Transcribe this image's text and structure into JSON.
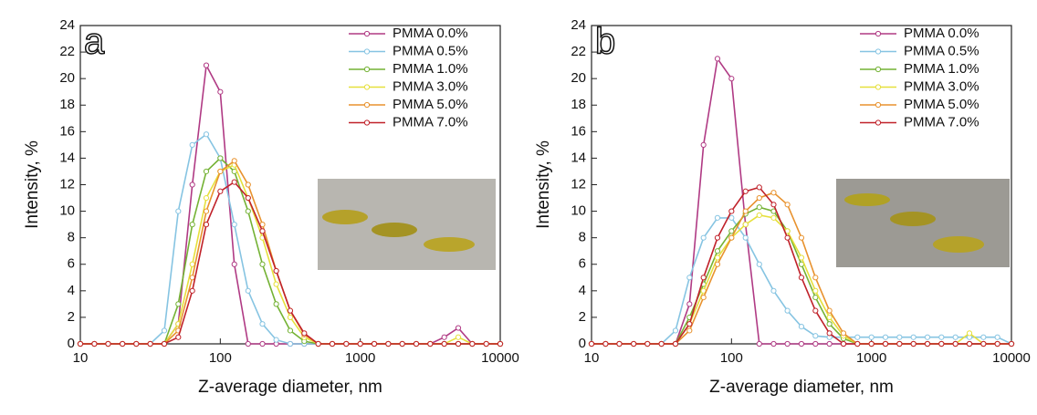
{
  "chart_data": [
    {
      "type": "line",
      "panel_label": "a",
      "x_label": "Z-average diameter, nm",
      "y_label": "Intensity, %",
      "log_x": true,
      "xlim": [
        10,
        10000
      ],
      "xticks": [
        10,
        100,
        1000,
        10000
      ],
      "ylim": [
        0,
        24
      ],
      "yticks": [
        0,
        2,
        4,
        6,
        8,
        10,
        12,
        14,
        16,
        18,
        20,
        22,
        24
      ],
      "legend": "upper right",
      "x": [
        10,
        12.6,
        15.8,
        20,
        25.1,
        31.6,
        39.8,
        50.1,
        63.1,
        79.4,
        100,
        126,
        158,
        200,
        251,
        316,
        398,
        501,
        631,
        794,
        1000,
        1259,
        1585,
        1995,
        2512,
        3162,
        3981,
        5012,
        6310,
        7943,
        10000
      ],
      "series": [
        {
          "name": "PMMA 0.0%",
          "color": "#b03a84",
          "values": [
            0,
            0,
            0,
            0,
            0,
            0,
            0,
            1.5,
            12,
            21,
            19,
            6,
            0,
            0,
            0,
            0,
            0,
            0,
            0,
            0,
            0,
            0,
            0,
            0,
            0,
            0,
            0.5,
            1.2,
            0,
            0,
            0
          ]
        },
        {
          "name": "PMMA 0.5%",
          "color": "#86c4e2",
          "values": [
            0,
            0,
            0,
            0,
            0,
            0,
            1,
            10,
            15,
            15.8,
            14,
            9,
            4,
            1.5,
            0.3,
            0,
            0,
            0,
            0,
            0,
            0,
            0,
            0,
            0,
            0,
            0,
            0,
            0,
            0,
            0,
            0
          ]
        },
        {
          "name": "PMMA 1.0%",
          "color": "#74b234",
          "values": [
            0,
            0,
            0,
            0,
            0,
            0,
            0,
            3,
            9,
            13,
            14,
            13,
            10,
            6,
            3,
            1,
            0.2,
            0,
            0,
            0,
            0,
            0,
            0,
            0,
            0,
            0,
            0,
            0,
            0,
            0,
            0
          ]
        },
        {
          "name": "PMMA 3.0%",
          "color": "#e6e03c",
          "values": [
            0,
            0,
            0,
            0,
            0,
            0,
            0,
            1.5,
            6,
            11,
            13,
            13.5,
            11,
            8,
            4.5,
            2,
            0.5,
            0,
            0,
            0,
            0,
            0,
            0,
            0,
            0,
            0,
            0,
            0.5,
            0,
            0,
            0
          ]
        },
        {
          "name": "PMMA 5.0%",
          "color": "#e8922e",
          "values": [
            0,
            0,
            0,
            0,
            0,
            0,
            0,
            1,
            5,
            10,
            13,
            13.8,
            12,
            9,
            5.5,
            2.5,
            0.7,
            0,
            0,
            0,
            0,
            0,
            0,
            0,
            0,
            0,
            0,
            0,
            0,
            0,
            0
          ]
        },
        {
          "name": "PMMA 7.0%",
          "color": "#c0222a",
          "values": [
            0,
            0,
            0,
            0,
            0,
            0,
            0,
            0.5,
            4,
            9,
            11.5,
            12.2,
            11,
            8.5,
            5.5,
            2.5,
            0.8,
            0,
            0,
            0,
            0,
            0,
            0,
            0,
            0,
            0,
            0,
            0,
            0,
            0,
            0
          ]
        }
      ]
    },
    {
      "type": "line",
      "panel_label": "b",
      "x_label": "Z-average diameter, nm",
      "y_label": "Intensity, %",
      "log_x": true,
      "xlim": [
        10,
        10000
      ],
      "xticks": [
        10,
        100,
        1000,
        10000
      ],
      "ylim": [
        0,
        24
      ],
      "yticks": [
        0,
        2,
        4,
        6,
        8,
        10,
        12,
        14,
        16,
        18,
        20,
        22,
        24
      ],
      "legend": "upper right",
      "x": [
        10,
        12.6,
        15.8,
        20,
        25.1,
        31.6,
        39.8,
        50.1,
        63.1,
        79.4,
        100,
        126,
        158,
        200,
        251,
        316,
        398,
        501,
        631,
        794,
        1000,
        1259,
        1585,
        1995,
        2512,
        3162,
        3981,
        5012,
        6310,
        7943,
        10000
      ],
      "series": [
        {
          "name": "PMMA 0.0%",
          "color": "#b03a84",
          "values": [
            0,
            0,
            0,
            0,
            0,
            0,
            0,
            3,
            15,
            21.5,
            20,
            9,
            0,
            0,
            0,
            0,
            0,
            0,
            0,
            0,
            0,
            0,
            0,
            0,
            0,
            0,
            0,
            0,
            0,
            0,
            0
          ]
        },
        {
          "name": "PMMA 0.5%",
          "color": "#86c4e2",
          "values": [
            0,
            0,
            0,
            0,
            0,
            0,
            1,
            5,
            8,
            9.5,
            9.5,
            8,
            6,
            4,
            2.5,
            1.3,
            0.6,
            0.5,
            0.5,
            0.5,
            0.5,
            0.5,
            0.5,
            0.5,
            0.5,
            0.5,
            0.5,
            0.5,
            0.5,
            0.5,
            0
          ]
        },
        {
          "name": "PMMA 1.0%",
          "color": "#74b234",
          "values": [
            0,
            0,
            0,
            0,
            0,
            0,
            0,
            2,
            4.5,
            7,
            8.5,
            9.8,
            10.3,
            10,
            8.5,
            6,
            3.5,
            1.5,
            0.4,
            0,
            0,
            0,
            0,
            0,
            0,
            0,
            0,
            0,
            0,
            0,
            0
          ]
        },
        {
          "name": "PMMA 3.0%",
          "color": "#e6e03c",
          "values": [
            0,
            0,
            0,
            0,
            0,
            0,
            0,
            1.5,
            4,
            6.5,
            8,
            9,
            9.7,
            9.5,
            8.5,
            6.5,
            4,
            2,
            0.6,
            0,
            0,
            0,
            0,
            0,
            0,
            0,
            0,
            0.8,
            0,
            0,
            0
          ]
        },
        {
          "name": "PMMA 5.0%",
          "color": "#e8922e",
          "values": [
            0,
            0,
            0,
            0,
            0,
            0,
            0,
            1,
            3.5,
            6,
            8,
            10,
            11,
            11.4,
            10.5,
            8,
            5,
            2.5,
            0.8,
            0,
            0,
            0,
            0,
            0,
            0,
            0,
            0,
            0,
            0,
            0,
            0
          ]
        },
        {
          "name": "PMMA 7.0%",
          "color": "#c0222a",
          "values": [
            0,
            0,
            0,
            0,
            0,
            0,
            0,
            1.5,
            5,
            8,
            10,
            11.5,
            11.8,
            10.5,
            8,
            5,
            2.5,
            0.8,
            0,
            0,
            0,
            0,
            0,
            0,
            0,
            0,
            0,
            0,
            0,
            0,
            0
          ]
        }
      ]
    }
  ]
}
